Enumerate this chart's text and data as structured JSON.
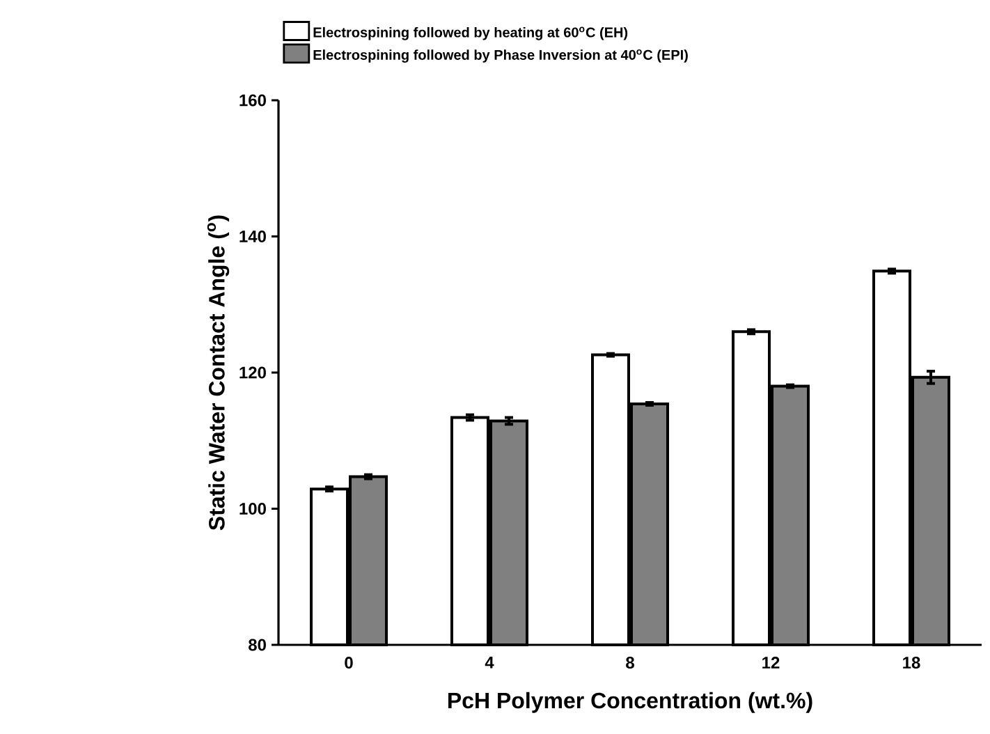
{
  "chart_data": {
    "type": "bar",
    "xlabel": "PcH Polymer Concentration (wt.%)",
    "ylabel": "Static Water Contact Angle ($^{o}$)",
    "categories": [
      "0",
      "4",
      "8",
      "12",
      "18"
    ],
    "series": [
      {
        "name": "Electrospining followed by heating at 60$^{o}$C (EH)",
        "color": "#ffffff",
        "values": [
          102.9,
          113.4,
          122.6,
          126.0,
          134.9
        ],
        "errors": [
          0.3,
          0.4,
          0.2,
          0.3,
          0.3
        ]
      },
      {
        "name": "Electrospining followed by Phase Inversion at 40$^{o}$C (EPI)",
        "color": "#808080",
        "values": [
          104.7,
          112.9,
          115.4,
          118.0,
          119.3
        ],
        "errors": [
          0.3,
          0.5,
          0.2,
          0.2,
          0.9
        ]
      }
    ],
    "ylim": [
      80,
      160
    ],
    "yticks": [
      80,
      100,
      120,
      140,
      160
    ],
    "grid": false,
    "legend": "top left"
  }
}
